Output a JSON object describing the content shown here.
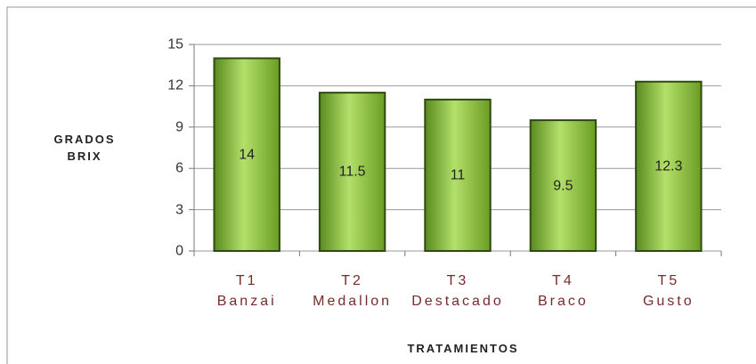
{
  "chart_data": {
    "type": "bar",
    "ylabel": "GRADOS\nBRIX",
    "xlabel": "TRATAMIENTOS",
    "categories": [
      "T1\nBanzai",
      "T2\nMedallon",
      "T3\nDestacado",
      "T4\nBraco",
      "T5\nGusto"
    ],
    "values": [
      14,
      11.5,
      11,
      9.5,
      12.3
    ],
    "color": "#8dc63f",
    "ylim": [
      0,
      15
    ],
    "yticks": [
      0,
      3,
      6,
      9,
      12,
      15
    ],
    "grid": true
  }
}
